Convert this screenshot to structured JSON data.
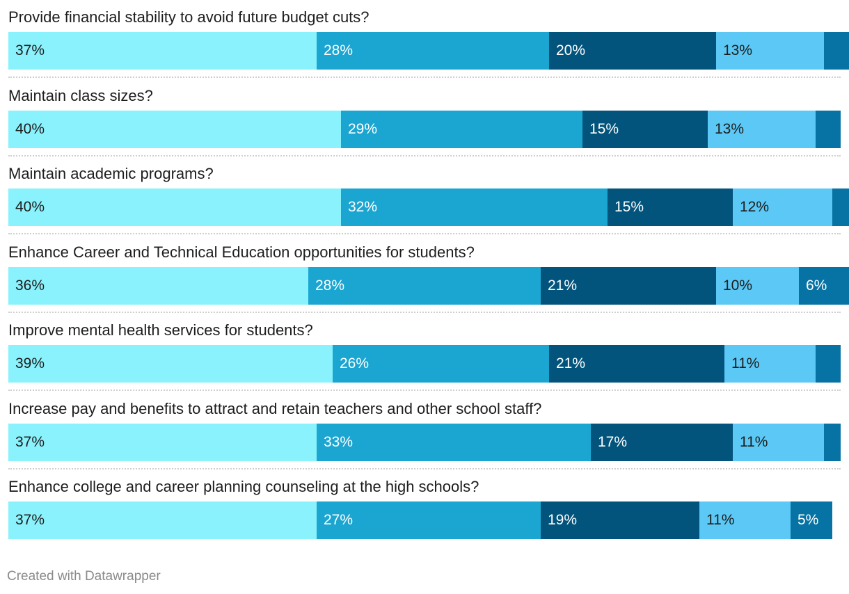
{
  "chart_data": {
    "type": "bar",
    "orientation": "horizontal",
    "stacked": true,
    "categories": [
      "Provide financial stability to avoid future budget cuts?",
      "Maintain class sizes?",
      "Maintain academic programs?",
      "Enhance Career and Technical Education opportunities for students?",
      "Improve mental health services for students?",
      "Increase pay and benefits to attract and retain teachers and other school staff?",
      "Enhance college and career planning counseling at the high schools?"
    ],
    "series": [
      {
        "name": "segment-1",
        "color": "#8af2fc",
        "text_color": "#1d1d1d",
        "values": [
          37,
          40,
          40,
          36,
          39,
          37,
          37
        ]
      },
      {
        "name": "segment-2",
        "color": "#1ba5d1",
        "text_color": "#ffffff",
        "values": [
          28,
          29,
          32,
          28,
          26,
          33,
          27
        ]
      },
      {
        "name": "segment-3",
        "color": "#03547c",
        "text_color": "#ffffff",
        "values": [
          20,
          15,
          15,
          21,
          21,
          17,
          19
        ]
      },
      {
        "name": "segment-4",
        "color": "#5bc8f5",
        "text_color": "#1d1d1d",
        "values": [
          13,
          13,
          12,
          10,
          11,
          11,
          11
        ]
      },
      {
        "name": "segment-5",
        "color": "#0673a4",
        "text_color": "#ffffff",
        "values": [
          3,
          3,
          2,
          6,
          3,
          2,
          5
        ]
      }
    ],
    "labels": [
      [
        "37%",
        "28%",
        "20%",
        "13%",
        ""
      ],
      [
        "40%",
        "29%",
        "15%",
        "13%",
        ""
      ],
      [
        "40%",
        "32%",
        "15%",
        "12%",
        ""
      ],
      [
        "36%",
        "28%",
        "21%",
        "10%",
        "6%"
      ],
      [
        "39%",
        "26%",
        "21%",
        "11%",
        ""
      ],
      [
        "37%",
        "33%",
        "17%",
        "11%",
        ""
      ],
      [
        "37%",
        "27%",
        "19%",
        "11%",
        "5%"
      ]
    ],
    "xlim": [
      0,
      100
    ]
  },
  "footer": {
    "credit": "Created with Datawrapper"
  }
}
